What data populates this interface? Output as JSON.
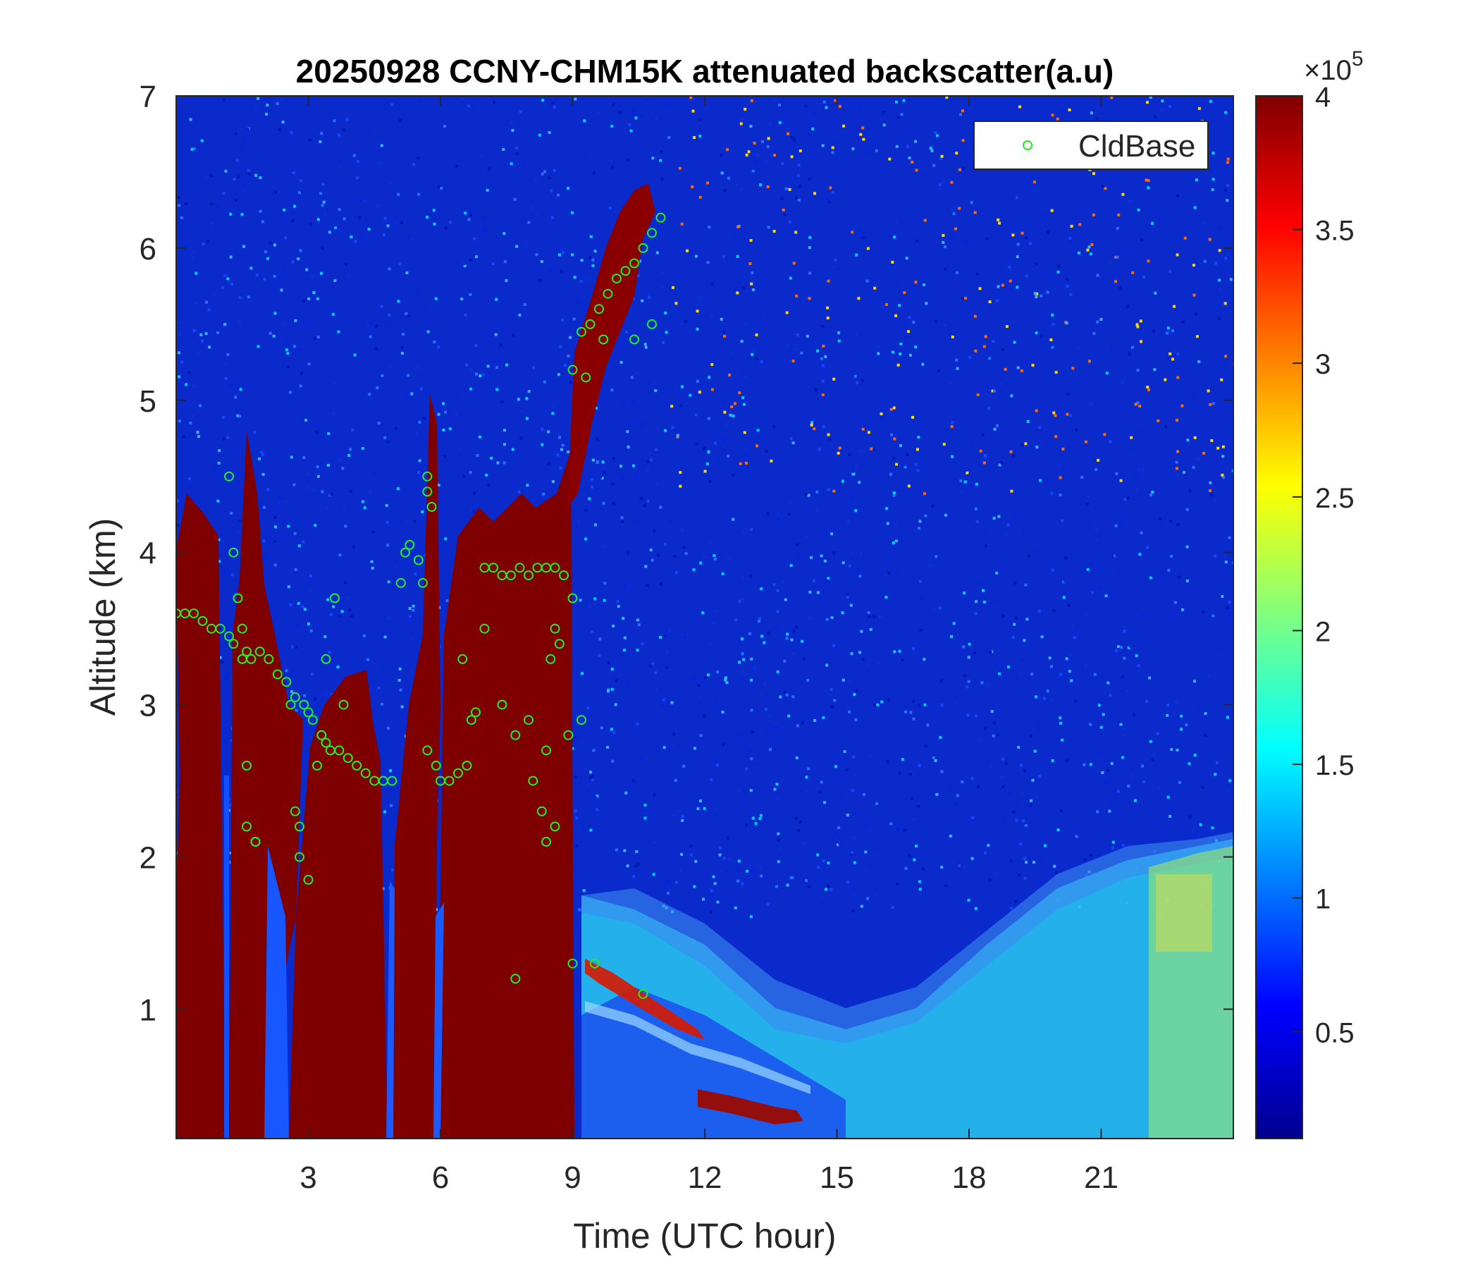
{
  "chart_data": {
    "type": "heatmap",
    "title": "20250928 CCNY-CHM15K attenuated backscatter(a.u)",
    "xlabel": "Time (UTC hour)",
    "ylabel": "Altitude (km)",
    "xlim": [
      0,
      24
    ],
    "ylim": [
      0.15,
      7
    ],
    "xticks": [
      3,
      6,
      9,
      12,
      15,
      18,
      21
    ],
    "yticks": [
      1,
      2,
      3,
      4,
      5,
      6,
      7
    ],
    "colorbar": {
      "lim": [
        0.1,
        4
      ],
      "ticks": [
        0.5,
        1,
        1.5,
        2,
        2.5,
        3,
        3.5,
        4
      ],
      "tick_labels": [
        "0.5",
        "1",
        "1.5",
        "2",
        "2.5",
        "3",
        "3.5",
        "4"
      ],
      "exponent_base": "×10",
      "exponent": "5",
      "colormap": "jet"
    },
    "grid": false,
    "legend": {
      "placement": "top-right",
      "entries": [
        {
          "label": "CldBase",
          "marker": "circle",
          "color": "#22ee22"
        }
      ]
    },
    "series": [
      {
        "name": "CldBase",
        "type": "scatter",
        "x": [
          0.0,
          0.2,
          0.4,
          0.6,
          0.8,
          1.0,
          1.2,
          1.3,
          1.5,
          1.6,
          1.7,
          1.9,
          2.1,
          2.3,
          2.5,
          2.7,
          2.9,
          3.0,
          3.1,
          3.3,
          3.4,
          3.5,
          3.7,
          3.9,
          4.1,
          4.3,
          4.5,
          4.7,
          4.9,
          5.1,
          5.2,
          5.3,
          5.5,
          5.6,
          5.7,
          5.9,
          6.0,
          6.2,
          6.4,
          6.6,
          6.7,
          6.8,
          7.0,
          7.2,
          7.4,
          7.6,
          7.8,
          8.0,
          8.2,
          8.4,
          8.6,
          8.8,
          9.0,
          9.2,
          9.4,
          9.6,
          9.8,
          10.0,
          10.2,
          10.4,
          10.6,
          10.8,
          11.0,
          1.2,
          1.4,
          1.5,
          1.6,
          1.8,
          2.7,
          2.8,
          3.0,
          3.2,
          3.4,
          3.6,
          3.8,
          5.7,
          5.8,
          6.5,
          7.0,
          7.4,
          7.7,
          8.0,
          8.1,
          8.3,
          8.4,
          8.5,
          8.6,
          8.7,
          8.9,
          9.0,
          9.2,
          9.3,
          9.5,
          9.7,
          10.4,
          10.6,
          10.8,
          1.3,
          1.6,
          1.8,
          2.6,
          2.8,
          3.3,
          5.7,
          7.7,
          8.4,
          8.6,
          9.0
        ],
        "y": [
          3.6,
          3.6,
          3.6,
          3.55,
          3.5,
          3.5,
          3.45,
          3.4,
          3.3,
          3.35,
          3.3,
          3.35,
          3.3,
          3.2,
          3.15,
          3.05,
          3.0,
          2.95,
          2.9,
          2.8,
          2.75,
          2.7,
          2.7,
          2.65,
          2.6,
          2.55,
          2.5,
          2.5,
          2.5,
          3.8,
          4.0,
          4.05,
          3.95,
          3.8,
          4.5,
          2.6,
          2.5,
          2.5,
          2.55,
          2.6,
          2.9,
          2.95,
          3.9,
          3.9,
          3.85,
          3.85,
          3.9,
          3.85,
          3.9,
          3.9,
          3.9,
          3.85,
          5.2,
          5.45,
          5.5,
          5.6,
          5.7,
          5.8,
          5.85,
          5.9,
          6.0,
          6.1,
          6.2,
          4.5,
          3.7,
          3.5,
          2.6,
          2.1,
          2.3,
          2.0,
          1.85,
          2.6,
          3.3,
          3.7,
          3.0,
          4.4,
          4.3,
          3.3,
          3.5,
          3.0,
          1.2,
          2.9,
          2.5,
          2.3,
          2.7,
          3.3,
          3.5,
          3.4,
          2.8,
          3.7,
          2.9,
          5.15,
          1.3,
          5.4,
          5.4,
          1.1,
          5.5,
          4.0,
          2.2,
          2.1,
          3.0,
          2.2,
          2.8,
          2.7,
          2.8,
          2.1,
          2.2,
          1.3
        ]
      }
    ]
  }
}
